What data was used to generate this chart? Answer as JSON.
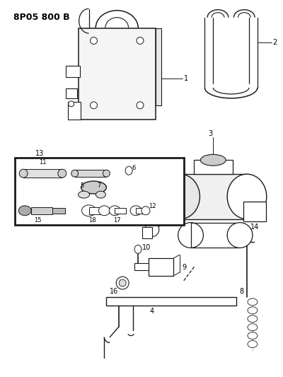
{
  "title": "8P05 800 B",
  "bg_color": "#ffffff",
  "lc": "#1a1a1a",
  "fig_width": 4.0,
  "fig_height": 5.33,
  "dpi": 100
}
